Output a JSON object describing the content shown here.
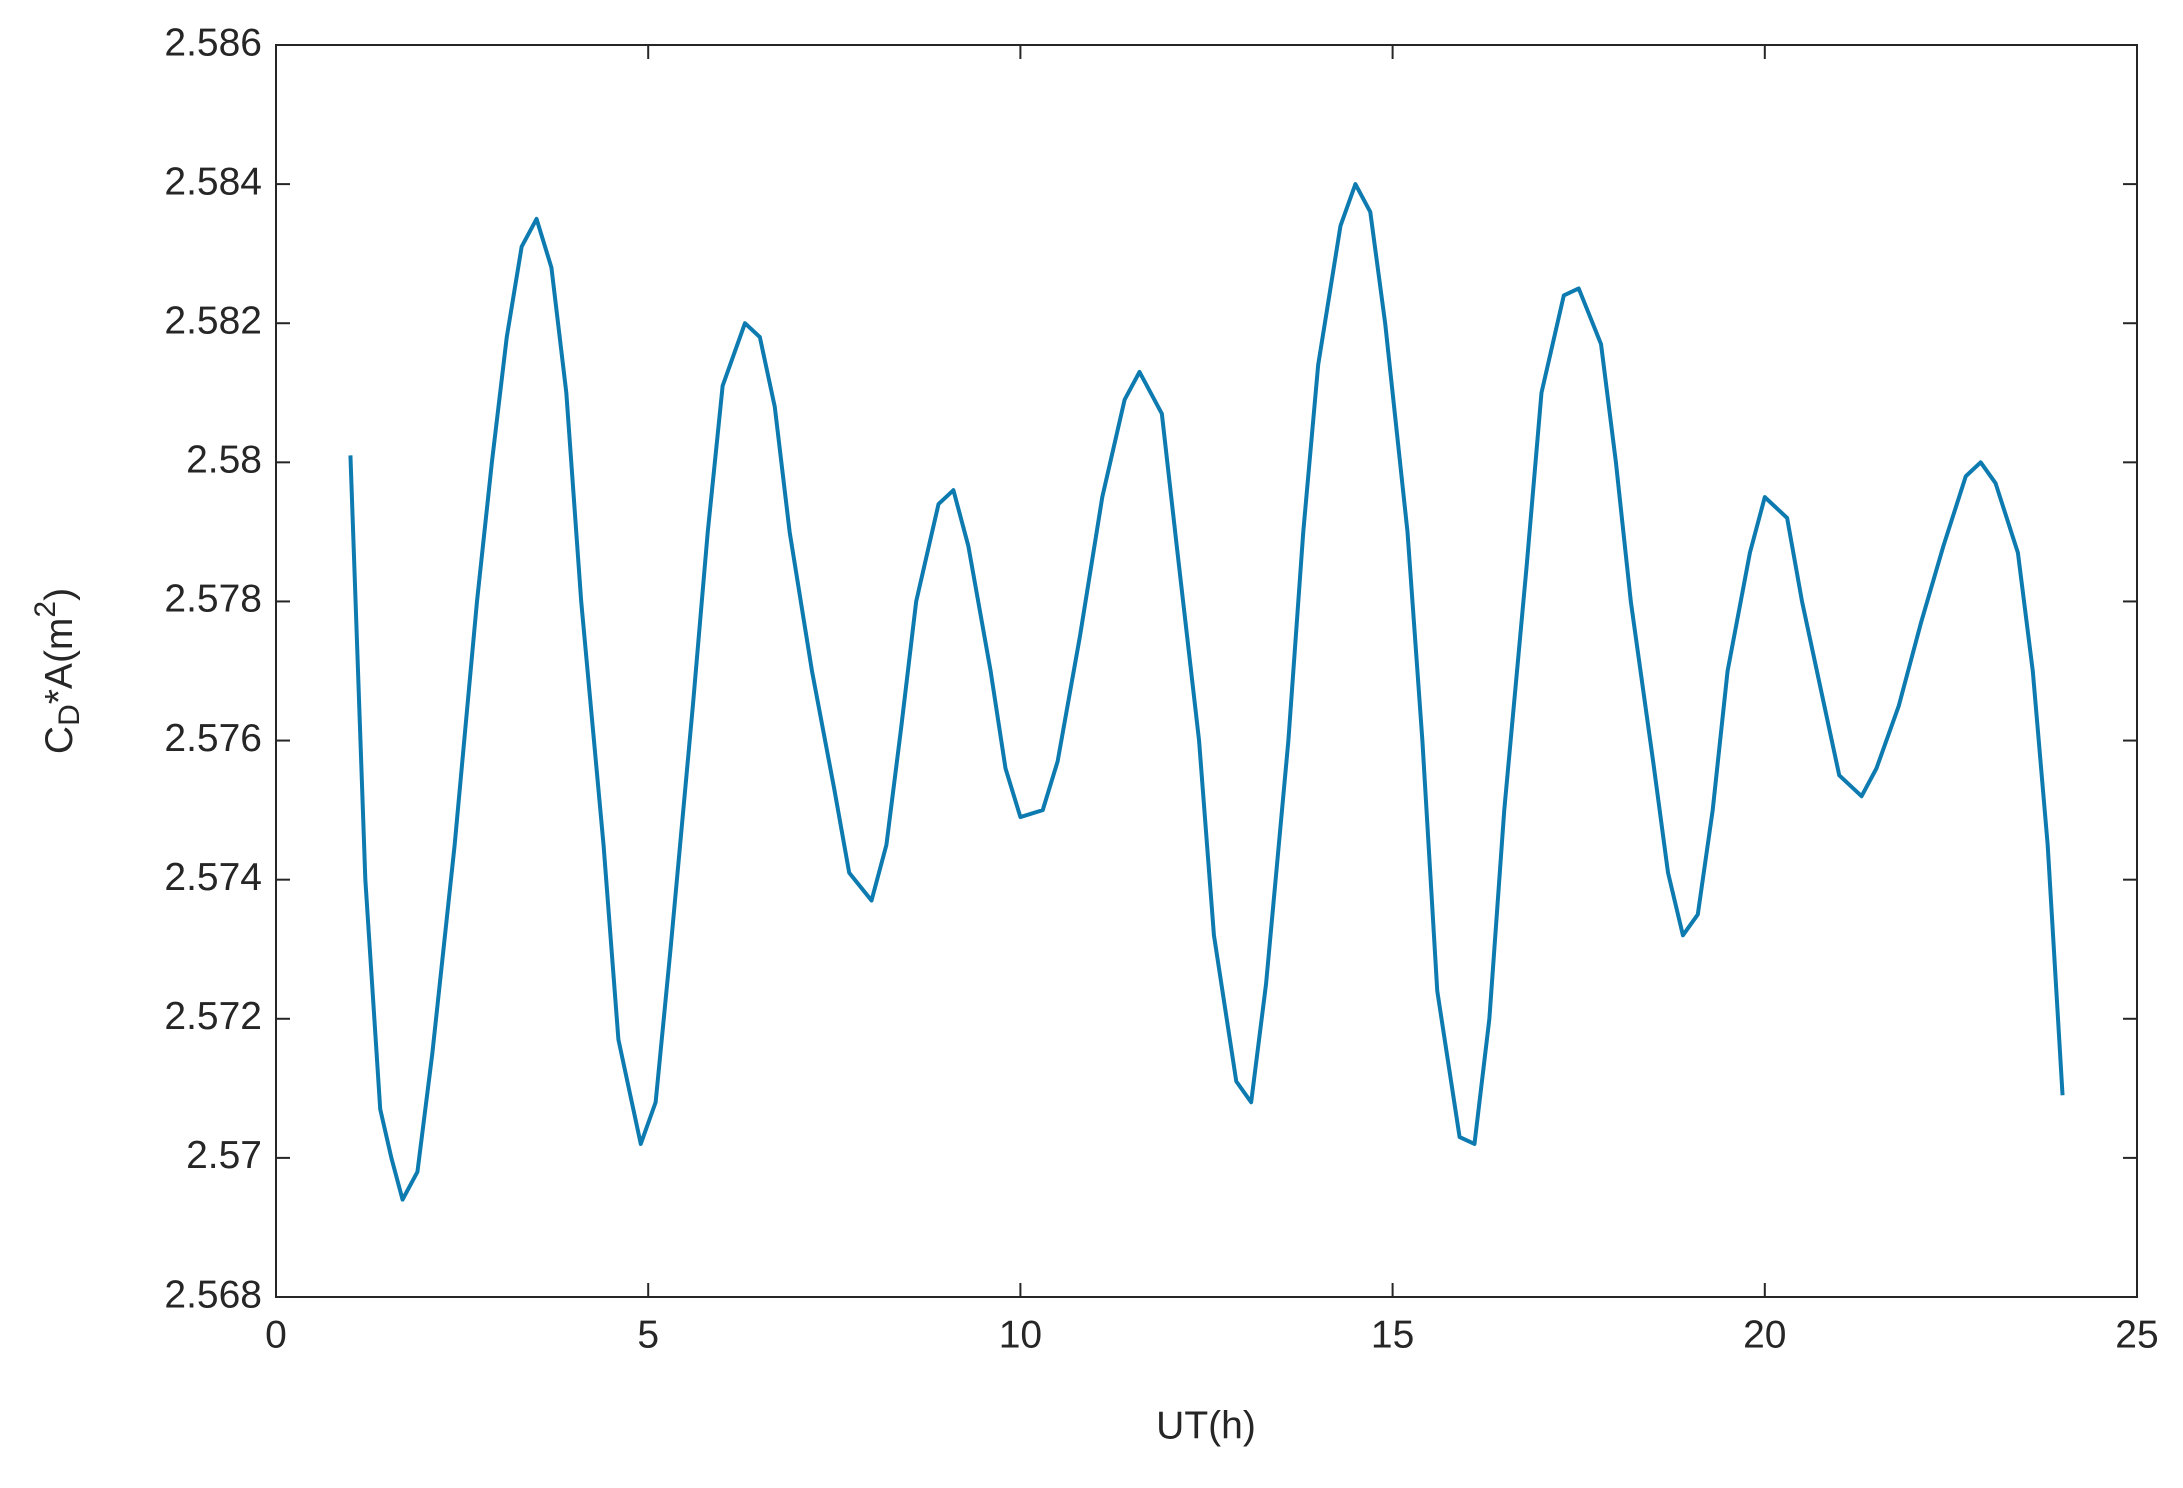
{
  "chart_data": {
    "type": "line",
    "xlabel": "UT(h)",
    "ylabel": [
      "C",
      "D",
      "*A(m",
      "2",
      ")"
    ],
    "x": [
      1.0,
      1.2,
      1.4,
      1.55,
      1.7,
      1.9,
      2.1,
      2.4,
      2.7,
      2.9,
      3.1,
      3.3,
      3.5,
      3.7,
      3.9,
      4.1,
      4.4,
      4.6,
      4.9,
      5.1,
      5.3,
      5.6,
      5.8,
      6.0,
      6.3,
      6.5,
      6.7,
      6.9,
      7.2,
      7.5,
      7.7,
      8.0,
      8.2,
      8.4,
      8.6,
      8.9,
      9.1,
      9.3,
      9.6,
      9.8,
      10.0,
      10.3,
      10.5,
      10.8,
      11.1,
      11.4,
      11.6,
      11.9,
      12.1,
      12.4,
      12.6,
      12.9,
      13.1,
      13.3,
      13.6,
      13.8,
      14.0,
      14.3,
      14.5,
      14.7,
      14.9,
      15.2,
      15.4,
      15.6,
      15.9,
      16.1,
      16.3,
      16.5,
      16.8,
      17.0,
      17.3,
      17.5,
      17.8,
      18.0,
      18.2,
      18.5,
      18.7,
      18.9,
      19.1,
      19.3,
      19.5,
      19.8,
      20.0,
      20.3,
      20.5,
      20.8,
      21.0,
      21.3,
      21.5,
      21.8,
      22.1,
      22.4,
      22.7,
      22.9,
      23.1,
      23.4,
      23.6,
      23.8,
      24.0
    ],
    "series": [
      {
        "name": "CdA",
        "color": "#0e7bb0",
        "values": [
          2.5801,
          2.574,
          2.5707,
          2.57,
          2.5694,
          2.5698,
          2.5715,
          2.5745,
          2.578,
          2.58,
          2.5818,
          2.5831,
          2.5835,
          2.5828,
          2.581,
          2.578,
          2.5745,
          2.5717,
          2.5702,
          2.5708,
          2.573,
          2.5765,
          2.579,
          2.5811,
          2.582,
          2.5818,
          2.5808,
          2.579,
          2.577,
          2.5753,
          2.5741,
          2.5737,
          2.5745,
          2.5762,
          2.578,
          2.5794,
          2.5796,
          2.5788,
          2.577,
          2.5756,
          2.5749,
          2.575,
          2.5757,
          2.5775,
          2.5795,
          2.5809,
          2.5813,
          2.5807,
          2.5788,
          2.576,
          2.5732,
          2.5711,
          2.5708,
          2.5725,
          2.576,
          2.579,
          2.5814,
          2.5834,
          2.584,
          2.5836,
          2.582,
          2.579,
          2.576,
          2.5724,
          2.5703,
          2.5702,
          2.572,
          2.575,
          2.5785,
          2.581,
          2.5824,
          2.5825,
          2.5817,
          2.58,
          2.578,
          2.5757,
          2.5741,
          2.5732,
          2.5735,
          2.575,
          2.577,
          2.5787,
          2.5795,
          2.5792,
          2.578,
          2.5765,
          2.5755,
          2.5752,
          2.5756,
          2.5765,
          2.5777,
          2.5788,
          2.5798,
          2.58,
          2.5797,
          2.5787,
          2.577,
          2.5745,
          2.5709
        ]
      }
    ],
    "xlim": [
      0,
      25
    ],
    "xticks": [
      0,
      5,
      10,
      15,
      20,
      25
    ],
    "ylim": [
      2.568,
      2.586
    ],
    "yticks": [
      2.568,
      2.57,
      2.572,
      2.574,
      2.576,
      2.578,
      2.58,
      2.582,
      2.584,
      2.586
    ],
    "grid": false
  }
}
